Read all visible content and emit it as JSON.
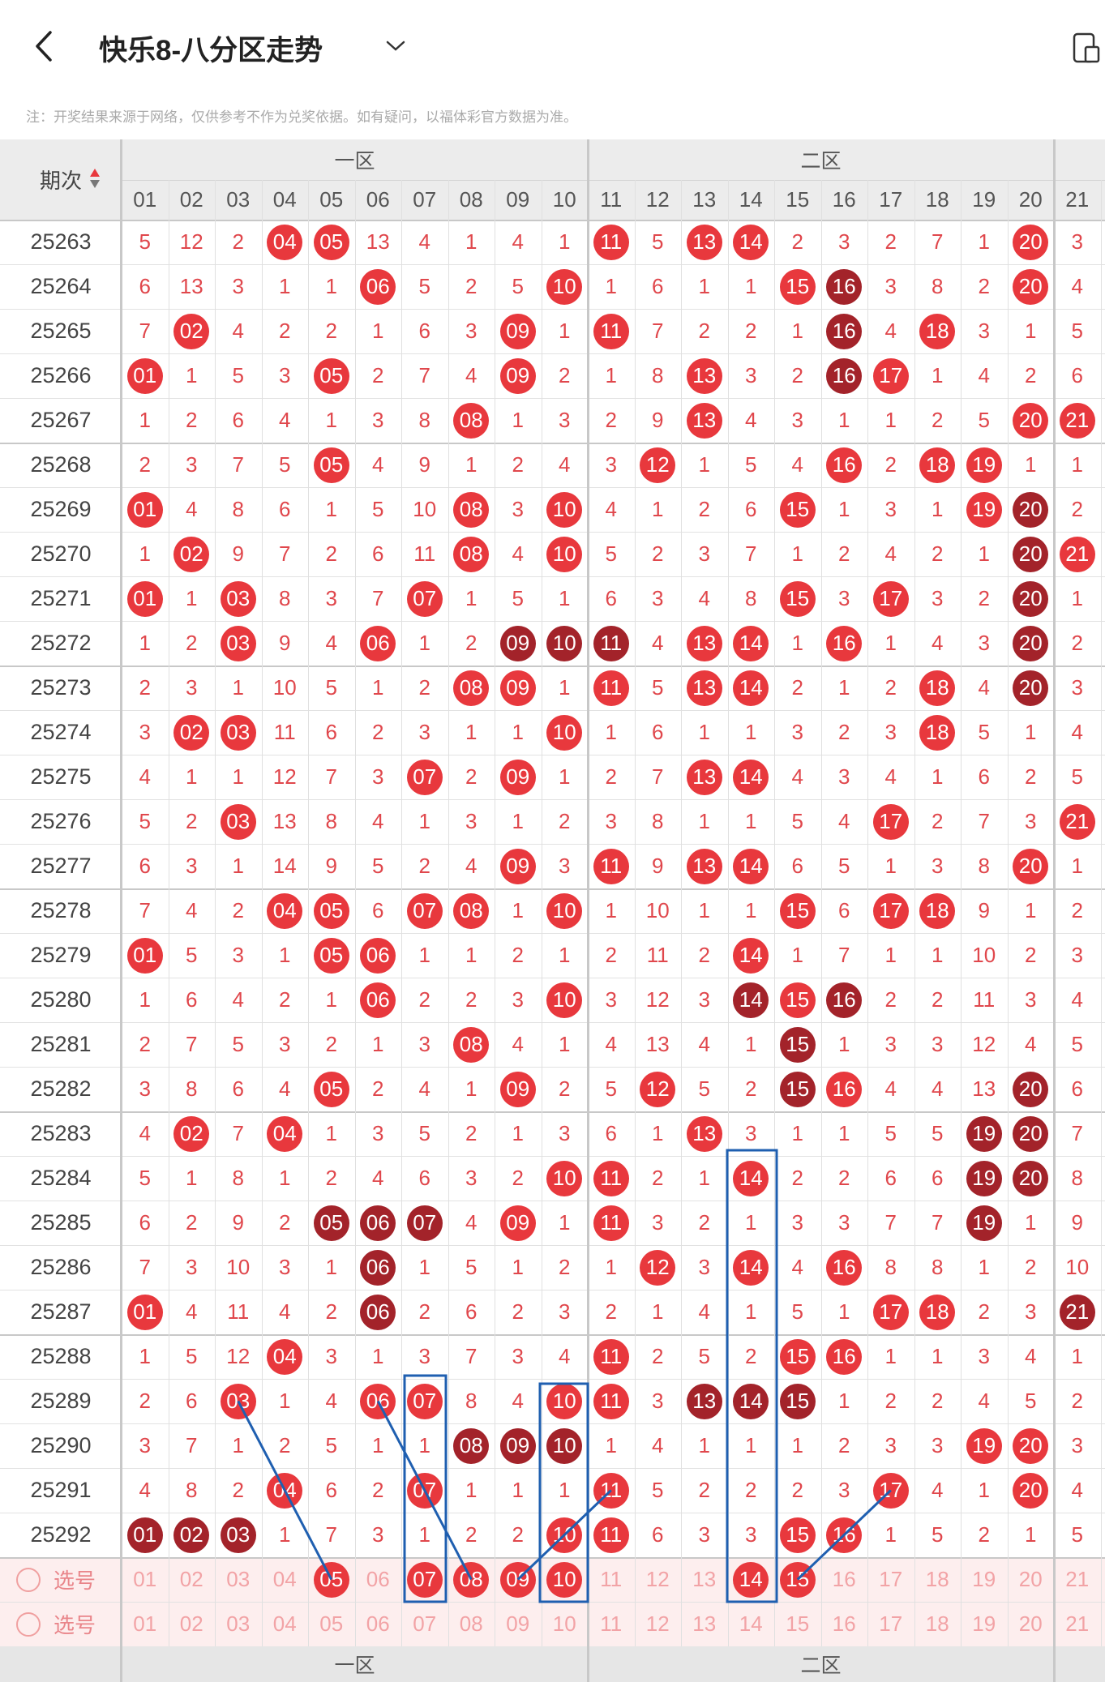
{
  "header": {
    "title": "快乐8-八分区走势"
  },
  "note": "注：开奖结果来源于网络，仅供参考不作为兑奖依据。如有疑问，以福体彩官方数据为准。",
  "table": {
    "zones": [
      "一区",
      "二区"
    ],
    "period_label": "期次",
    "columns": [
      "01",
      "02",
      "03",
      "04",
      "05",
      "06",
      "07",
      "08",
      "09",
      "10",
      "11",
      "12",
      "13",
      "14",
      "15",
      "16",
      "17",
      "18",
      "19",
      "20",
      "21"
    ],
    "rows": [
      {
        "period": "25263",
        "cells": [
          "5",
          "12",
          "2",
          "04",
          "05",
          "13",
          "4",
          "1",
          "4",
          "1",
          "11",
          "5",
          "13",
          "14",
          "2",
          "3",
          "2",
          "7",
          "1",
          "20",
          "3"
        ],
        "marks": "...rr.....r.rr.....r."
      },
      {
        "period": "25264",
        "cells": [
          "6",
          "13",
          "3",
          "1",
          "1",
          "06",
          "5",
          "2",
          "5",
          "10",
          "1",
          "6",
          "1",
          "1",
          "15",
          "16",
          "3",
          "8",
          "2",
          "20",
          "4"
        ],
        "marks": ".....r...r....rd...r."
      },
      {
        "period": "25265",
        "cells": [
          "7",
          "02",
          "4",
          "2",
          "2",
          "1",
          "6",
          "3",
          "09",
          "1",
          "11",
          "7",
          "2",
          "2",
          "1",
          "16",
          "4",
          "18",
          "3",
          "1",
          "5"
        ],
        "marks": ".r......r.r....d.r..."
      },
      {
        "period": "25266",
        "cells": [
          "01",
          "1",
          "5",
          "3",
          "05",
          "2",
          "7",
          "4",
          "09",
          "2",
          "1",
          "8",
          "13",
          "3",
          "2",
          "16",
          "17",
          "1",
          "4",
          "2",
          "6"
        ],
        "marks": "r...r...r...r..dr...."
      },
      {
        "period": "25267",
        "cells": [
          "1",
          "2",
          "6",
          "4",
          "1",
          "3",
          "8",
          "08",
          "1",
          "3",
          "2",
          "9",
          "13",
          "4",
          "3",
          "1",
          "1",
          "2",
          "5",
          "20",
          "21"
        ],
        "marks": ".......r....r......rr"
      },
      {
        "period": "25268",
        "cells": [
          "2",
          "3",
          "7",
          "5",
          "05",
          "4",
          "9",
          "1",
          "2",
          "4",
          "3",
          "12",
          "1",
          "5",
          "4",
          "16",
          "2",
          "18",
          "19",
          "1",
          "1"
        ],
        "marks": "....r......r...r.rr.."
      },
      {
        "period": "25269",
        "cells": [
          "01",
          "4",
          "8",
          "6",
          "1",
          "5",
          "10",
          "08",
          "3",
          "10",
          "4",
          "1",
          "2",
          "6",
          "15",
          "1",
          "3",
          "1",
          "19",
          "20",
          "2"
        ],
        "marks": "r......r.r....r...rd."
      },
      {
        "period": "25270",
        "cells": [
          "1",
          "02",
          "9",
          "7",
          "2",
          "6",
          "11",
          "08",
          "4",
          "10",
          "5",
          "2",
          "3",
          "7",
          "1",
          "2",
          "4",
          "2",
          "1",
          "20",
          "21"
        ],
        "marks": ".r.....r.r.........dr"
      },
      {
        "period": "25271",
        "cells": [
          "01",
          "1",
          "03",
          "8",
          "3",
          "7",
          "07",
          "1",
          "5",
          "1",
          "6",
          "3",
          "4",
          "8",
          "15",
          "3",
          "17",
          "3",
          "2",
          "20",
          "1"
        ],
        "marks": "r.r...r.......r.r..d."
      },
      {
        "period": "25272",
        "cells": [
          "1",
          "2",
          "03",
          "9",
          "4",
          "06",
          "1",
          "2",
          "09",
          "10",
          "11",
          "4",
          "13",
          "14",
          "1",
          "16",
          "1",
          "4",
          "3",
          "20",
          "2"
        ],
        "marks": "..r..r..ddd.rr.r...d."
      },
      {
        "period": "25273",
        "cells": [
          "2",
          "3",
          "1",
          "10",
          "5",
          "1",
          "2",
          "08",
          "09",
          "1",
          "11",
          "5",
          "13",
          "14",
          "2",
          "1",
          "2",
          "18",
          "4",
          "20",
          "3"
        ],
        "marks": ".......rr.r.rr...r.d."
      },
      {
        "period": "25274",
        "cells": [
          "3",
          "02",
          "03",
          "11",
          "6",
          "2",
          "3",
          "1",
          "1",
          "10",
          "1",
          "6",
          "1",
          "1",
          "3",
          "2",
          "3",
          "18",
          "5",
          "1",
          "4"
        ],
        "marks": ".rr......r.......r..."
      },
      {
        "period": "25275",
        "cells": [
          "4",
          "1",
          "1",
          "12",
          "7",
          "3",
          "07",
          "2",
          "09",
          "1",
          "2",
          "7",
          "13",
          "14",
          "4",
          "3",
          "4",
          "1",
          "6",
          "2",
          "5"
        ],
        "marks": "......r.r...rr......."
      },
      {
        "period": "25276",
        "cells": [
          "5",
          "2",
          "03",
          "13",
          "8",
          "4",
          "1",
          "3",
          "1",
          "2",
          "3",
          "8",
          "1",
          "1",
          "5",
          "4",
          "17",
          "2",
          "7",
          "3",
          "21"
        ],
        "marks": "..r.............r...r"
      },
      {
        "period": "25277",
        "cells": [
          "6",
          "3",
          "1",
          "14",
          "9",
          "5",
          "2",
          "4",
          "09",
          "3",
          "11",
          "9",
          "13",
          "14",
          "6",
          "5",
          "1",
          "3",
          "8",
          "20",
          "1"
        ],
        "marks": "........r.r.rr.....r."
      },
      {
        "period": "25278",
        "cells": [
          "7",
          "4",
          "2",
          "04",
          "05",
          "6",
          "07",
          "08",
          "1",
          "10",
          "1",
          "10",
          "1",
          "1",
          "15",
          "6",
          "17",
          "18",
          "9",
          "1",
          "2"
        ],
        "marks": "...rr.rr.r....r.rr..."
      },
      {
        "period": "25279",
        "cells": [
          "01",
          "5",
          "3",
          "1",
          "05",
          "06",
          "1",
          "1",
          "2",
          "1",
          "2",
          "11",
          "2",
          "14",
          "1",
          "7",
          "1",
          "1",
          "10",
          "2",
          "3"
        ],
        "marks": "r...rr.......r......."
      },
      {
        "period": "25280",
        "cells": [
          "1",
          "6",
          "4",
          "2",
          "1",
          "06",
          "2",
          "2",
          "3",
          "10",
          "3",
          "12",
          "3",
          "14",
          "15",
          "16",
          "2",
          "2",
          "11",
          "3",
          "4"
        ],
        "marks": ".....r...r...drd....."
      },
      {
        "period": "25281",
        "cells": [
          "2",
          "7",
          "5",
          "3",
          "2",
          "1",
          "3",
          "08",
          "4",
          "1",
          "4",
          "13",
          "4",
          "1",
          "15",
          "1",
          "3",
          "3",
          "12",
          "4",
          "5"
        ],
        "marks": ".......r......d......"
      },
      {
        "period": "25282",
        "cells": [
          "3",
          "8",
          "6",
          "4",
          "05",
          "2",
          "4",
          "1",
          "09",
          "2",
          "5",
          "12",
          "5",
          "2",
          "15",
          "16",
          "4",
          "4",
          "13",
          "20",
          "6"
        ],
        "marks": "....r...r..r..dr...d."
      },
      {
        "period": "25283",
        "cells": [
          "4",
          "02",
          "7",
          "04",
          "1",
          "3",
          "5",
          "2",
          "1",
          "3",
          "6",
          "1",
          "13",
          "3",
          "1",
          "1",
          "5",
          "5",
          "19",
          "20",
          "7"
        ],
        "marks": ".r.r........r.....dd."
      },
      {
        "period": "25284",
        "cells": [
          "5",
          "1",
          "8",
          "1",
          "2",
          "4",
          "6",
          "3",
          "2",
          "10",
          "11",
          "2",
          "1",
          "14",
          "2",
          "2",
          "6",
          "6",
          "19",
          "20",
          "8"
        ],
        "marks": ".........rr..r....dd."
      },
      {
        "period": "25285",
        "cells": [
          "6",
          "2",
          "9",
          "2",
          "05",
          "06",
          "07",
          "4",
          "09",
          "1",
          "11",
          "3",
          "2",
          "1",
          "3",
          "3",
          "7",
          "7",
          "19",
          "1",
          "9"
        ],
        "marks": "....ddd.r.r.......d.."
      },
      {
        "period": "25286",
        "cells": [
          "7",
          "3",
          "10",
          "3",
          "1",
          "06",
          "1",
          "5",
          "1",
          "2",
          "1",
          "12",
          "3",
          "14",
          "4",
          "16",
          "8",
          "8",
          "1",
          "2",
          "10"
        ],
        "marks": ".....d.....r.r.r....."
      },
      {
        "period": "25287",
        "cells": [
          "01",
          "4",
          "11",
          "4",
          "2",
          "06",
          "2",
          "6",
          "2",
          "3",
          "2",
          "1",
          "4",
          "1",
          "5",
          "1",
          "17",
          "18",
          "2",
          "3",
          "21"
        ],
        "marks": "r....d..........rr..d"
      },
      {
        "period": "25288",
        "cells": [
          "1",
          "5",
          "12",
          "04",
          "3",
          "1",
          "3",
          "7",
          "3",
          "4",
          "11",
          "2",
          "5",
          "2",
          "15",
          "16",
          "1",
          "1",
          "3",
          "4",
          "1"
        ],
        "marks": "...r......r...rr....."
      },
      {
        "period": "25289",
        "cells": [
          "2",
          "6",
          "03",
          "1",
          "4",
          "06",
          "07",
          "8",
          "4",
          "10",
          "11",
          "3",
          "13",
          "14",
          "15",
          "1",
          "2",
          "2",
          "4",
          "5",
          "2"
        ],
        "marks": "..r..rr..rr.ddd......"
      },
      {
        "period": "25290",
        "cells": [
          "3",
          "7",
          "1",
          "2",
          "5",
          "1",
          "1",
          "08",
          "09",
          "10",
          "1",
          "4",
          "1",
          "1",
          "1",
          "2",
          "3",
          "3",
          "19",
          "20",
          "3"
        ],
        "marks": ".......ddd........rr."
      },
      {
        "period": "25291",
        "cells": [
          "4",
          "8",
          "2",
          "04",
          "6",
          "2",
          "07",
          "1",
          "1",
          "1",
          "11",
          "5",
          "2",
          "2",
          "2",
          "3",
          "17",
          "4",
          "1",
          "20",
          "4"
        ],
        "marks": "...r..r...r.....r..r."
      },
      {
        "period": "25292",
        "cells": [
          "01",
          "02",
          "03",
          "1",
          "7",
          "3",
          "1",
          "2",
          "2",
          "10",
          "11",
          "6",
          "3",
          "3",
          "15",
          "16",
          "1",
          "5",
          "2",
          "1",
          "5"
        ],
        "marks": "ddd......rr...rr....."
      }
    ],
    "select_rows": [
      {
        "label": "选号",
        "cells": [
          "01",
          "02",
          "03",
          "04",
          "05",
          "06",
          "07",
          "08",
          "09",
          "10",
          "11",
          "12",
          "13",
          "14",
          "15",
          "16",
          "17",
          "18",
          "19",
          "20",
          "21"
        ],
        "marks": "....r.rrrr...rr......"
      },
      {
        "label": "选号",
        "cells": [
          "01",
          "02",
          "03",
          "04",
          "05",
          "06",
          "07",
          "08",
          "09",
          "10",
          "11",
          "12",
          "13",
          "14",
          "15",
          "16",
          "17",
          "18",
          "19",
          "20",
          "21"
        ],
        "marks": "....................."
      }
    ]
  },
  "footer": {
    "zones": [
      "一区",
      "二区"
    ]
  }
}
